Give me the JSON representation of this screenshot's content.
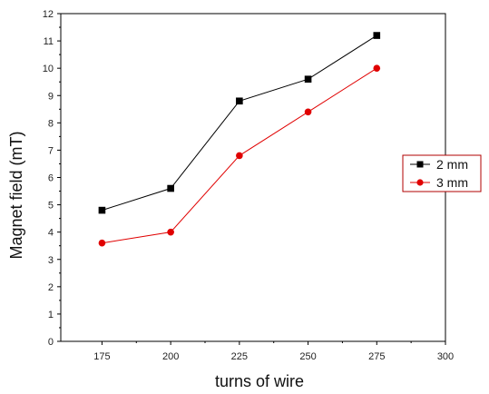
{
  "chart_data": {
    "type": "line",
    "title": "",
    "xlabel": "turns of wire",
    "ylabel": "Magnet field (mT)",
    "xlim": [
      160,
      300
    ],
    "ylim": [
      0,
      12
    ],
    "x_ticks": [
      175,
      200,
      225,
      250,
      275,
      300
    ],
    "y_ticks": [
      0,
      1,
      2,
      3,
      4,
      5,
      6,
      7,
      8,
      9,
      10,
      11,
      12
    ],
    "x": [
      175,
      200,
      225,
      250,
      275
    ],
    "series": [
      {
        "name": "2 mm",
        "values": [
          4.8,
          5.6,
          8.8,
          9.6,
          11.2
        ],
        "color": "#000000",
        "marker": "square"
      },
      {
        "name": "3 mm",
        "values": [
          3.6,
          4.0,
          6.8,
          8.4,
          10.0
        ],
        "color": "#e00000",
        "marker": "circle"
      }
    ],
    "legend_position": "right",
    "grid": false
  }
}
